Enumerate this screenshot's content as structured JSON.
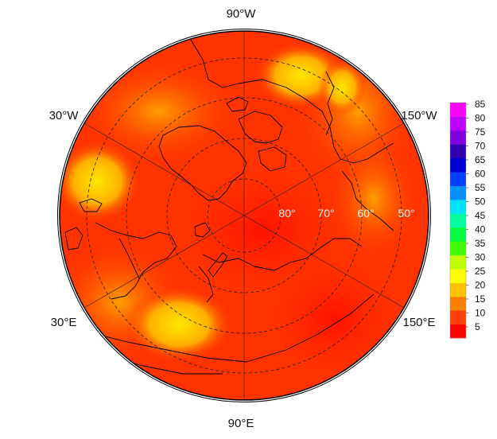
{
  "longitude_labels": {
    "top": "90°W",
    "upper_left": "30°W",
    "upper_right": "150°W",
    "lower_left": "30°E",
    "lower_right": "150°E",
    "bottom": "90°E"
  },
  "latitude_labels": [
    "80°",
    "70°",
    "60°",
    "50°"
  ],
  "colorbar": {
    "ticks": [
      "85",
      "80",
      "75",
      "70",
      "65",
      "60",
      "55",
      "50",
      "45",
      "40",
      "35",
      "30",
      "25",
      "20",
      "15",
      "10",
      "5"
    ],
    "colors": [
      "#ff0000",
      "#ff4000",
      "#ff8000",
      "#ffc000",
      "#ffff00",
      "#c0ff00",
      "#40ff00",
      "#00ff40",
      "#00ffa0",
      "#00e0ff",
      "#0090ff",
      "#0040ff",
      "#0000d0",
      "#3000b0",
      "#8000e0",
      "#c000ff",
      "#ff00ff"
    ]
  },
  "field": {
    "base_color": "#ff3000",
    "high_patch_colors": [
      "#ff9000",
      "#ffd000",
      "#ffe000"
    ]
  }
}
